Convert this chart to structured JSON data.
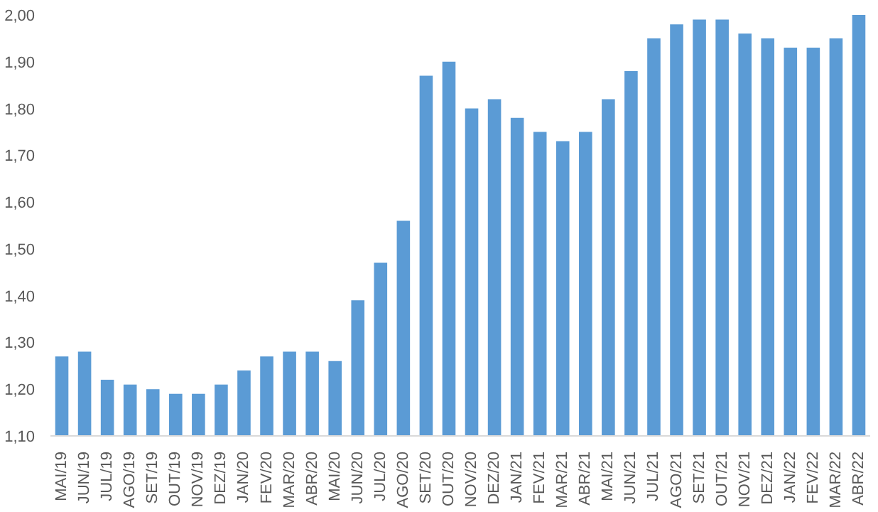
{
  "chart_data": {
    "type": "bar",
    "categories": [
      "MAI/19",
      "JUN/19",
      "JUL/19",
      "AGO/19",
      "SET/19",
      "OUT/19",
      "NOV/19",
      "DEZ/19",
      "JAN/20",
      "FEV/20",
      "MAR/20",
      "ABR/20",
      "MAI/20",
      "JUN/20",
      "JUL/20",
      "AGO/20",
      "SET/20",
      "OUT/20",
      "NOV/20",
      "DEZ/20",
      "JAN/21",
      "FEV/21",
      "MAR/21",
      "ABR/21",
      "MAI/21",
      "JUN/21",
      "JUL/21",
      "AGO/21",
      "SET/21",
      "OUT/21",
      "NOV/21",
      "DEZ/21",
      "JAN/22",
      "FEV/22",
      "MAR/22",
      "ABR/22"
    ],
    "values": [
      1.27,
      1.28,
      1.22,
      1.21,
      1.2,
      1.19,
      1.19,
      1.21,
      1.24,
      1.27,
      1.28,
      1.28,
      1.26,
      1.39,
      1.47,
      1.56,
      1.87,
      1.9,
      1.8,
      1.82,
      1.78,
      1.75,
      1.73,
      1.75,
      1.82,
      1.88,
      1.95,
      1.98,
      1.99,
      1.99,
      1.96,
      1.95,
      1.93,
      1.93,
      1.95,
      2.0
    ],
    "color": "#5b9bd5",
    "ylim": [
      1.1,
      2.0
    ],
    "yticks": [
      {
        "value": 1.1,
        "label": "1,10"
      },
      {
        "value": 1.2,
        "label": "1,20"
      },
      {
        "value": 1.3,
        "label": "1,30"
      },
      {
        "value": 1.4,
        "label": "1,40"
      },
      {
        "value": 1.5,
        "label": "1,50"
      },
      {
        "value": 1.6,
        "label": "1,60"
      },
      {
        "value": 1.7,
        "label": "1,70"
      },
      {
        "value": 1.8,
        "label": "1,80"
      },
      {
        "value": 1.9,
        "label": "1,90"
      },
      {
        "value": 2.0,
        "label": "2,00"
      }
    ],
    "grid": false
  }
}
